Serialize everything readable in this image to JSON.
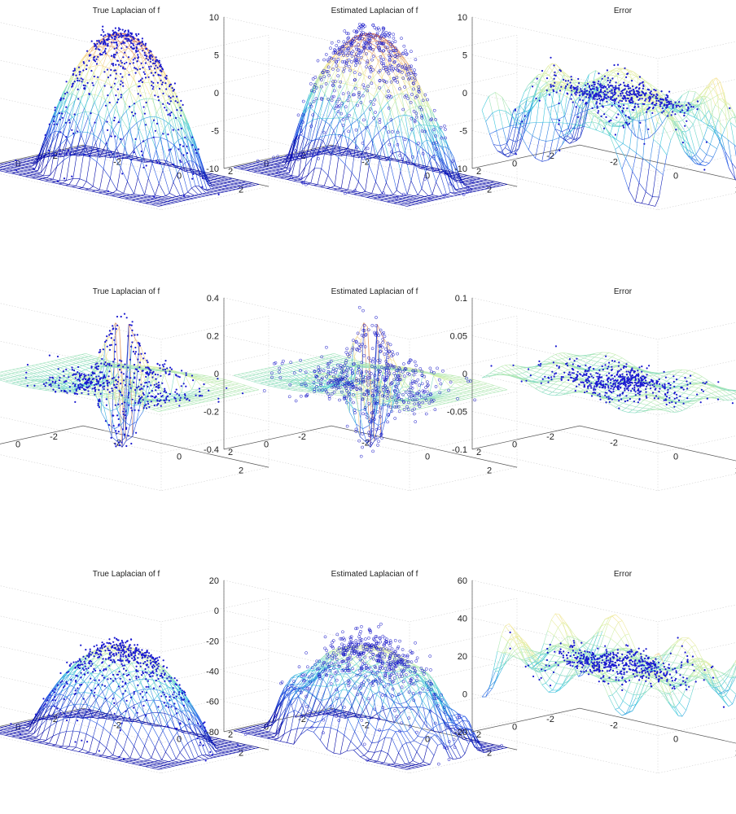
{
  "chart_data": [
    {
      "type": "surface",
      "title": "True Laplacian of f",
      "zlim": [
        -10,
        10
      ],
      "z_ticks": [
        "10",
        "5",
        "0",
        "-5",
        "-10"
      ],
      "x_ticks": [
        "-2",
        "0",
        "2"
      ],
      "y_ticks": [
        "2",
        "0",
        "-2"
      ],
      "shape": "dome",
      "amplitude": 10,
      "markers": "dot"
    },
    {
      "type": "surface",
      "title": "Estimated Laplacian of f",
      "zlim": [
        -10,
        10
      ],
      "z_ticks": [
        "10",
        "5",
        "0",
        "-5",
        "-10"
      ],
      "x_ticks": [
        "-2",
        "0",
        "2"
      ],
      "y_ticks": [
        "2",
        "0",
        "-2"
      ],
      "shape": "rough-dome",
      "amplitude": 10,
      "markers": "circle"
    },
    {
      "type": "surface",
      "title": "Error",
      "zlim": [
        -10,
        10
      ],
      "z_ticks": [
        "10",
        "5",
        "0",
        "-5",
        "-10"
      ],
      "x_ticks": [
        "-2",
        "0",
        "2"
      ],
      "y_ticks": [
        "2",
        "0",
        "-2"
      ],
      "shape": "error",
      "amplitude": 3,
      "markers": "dot"
    },
    {
      "type": "surface",
      "title": "True Laplacian of f",
      "zlim": [
        -0.4,
        0.4
      ],
      "z_ticks": [
        "0.4",
        "0.2",
        "0",
        "-0.2",
        "-0.4"
      ],
      "x_ticks": [
        "-2",
        "0",
        "2"
      ],
      "y_ticks": [
        "2",
        "0",
        "-2"
      ],
      "shape": "mexican-hat",
      "amplitude": 0.3,
      "markers": "dot"
    },
    {
      "type": "surface",
      "title": "Estimated Laplacian of f",
      "zlim": [
        -0.4,
        0.4
      ],
      "z_ticks": [
        "0.4",
        "0.2",
        "0",
        "-0.2",
        "-0.4"
      ],
      "x_ticks": [
        "-2",
        "0",
        "2"
      ],
      "y_ticks": [
        "2",
        "0",
        "-2"
      ],
      "shape": "mexican-hat",
      "amplitude": 0.3,
      "markers": "circle"
    },
    {
      "type": "surface",
      "title": "Error",
      "zlim": [
        -0.1,
        0.1
      ],
      "z_ticks": [
        "0.1",
        "0.05",
        "0",
        "-0.05",
        "-0.1"
      ],
      "x_ticks": [
        "-2",
        "0",
        "2"
      ],
      "y_ticks": [
        "2",
        "0",
        "-2"
      ],
      "shape": "error-small",
      "amplitude": 0.02,
      "markers": "dot"
    },
    {
      "type": "surface",
      "title": "True Laplacian of f",
      "zlim": [
        -80,
        20
      ],
      "z_ticks": [
        "20",
        "0",
        "-20",
        "-40",
        "-60",
        "-80"
      ],
      "x_ticks": [
        "-2",
        "0",
        "2"
      ],
      "y_ticks": [
        "2",
        "0",
        "-2"
      ],
      "shape": "inverted-bowl",
      "amplitude": 80,
      "markers": "dot"
    },
    {
      "type": "surface",
      "title": "Estimated Laplacian of f",
      "zlim": [
        -80,
        20
      ],
      "z_ticks": [
        "20",
        "0",
        "-20",
        "-40",
        "-60",
        "-80"
      ],
      "x_ticks": [
        "-2",
        "0",
        "2"
      ],
      "y_ticks": [
        "2",
        "0",
        "-2"
      ],
      "shape": "rough-bowl",
      "amplitude": 80,
      "markers": "circle"
    },
    {
      "type": "surface",
      "title": "Error",
      "zlim": [
        -20,
        60
      ],
      "z_ticks": [
        "60",
        "40",
        "20",
        "0",
        "-20"
      ],
      "x_ticks": [
        "-2",
        "0",
        "2"
      ],
      "y_ticks": [
        "2",
        "0",
        "-2"
      ],
      "shape": "error-large",
      "amplitude": 20,
      "markers": "dot"
    }
  ]
}
